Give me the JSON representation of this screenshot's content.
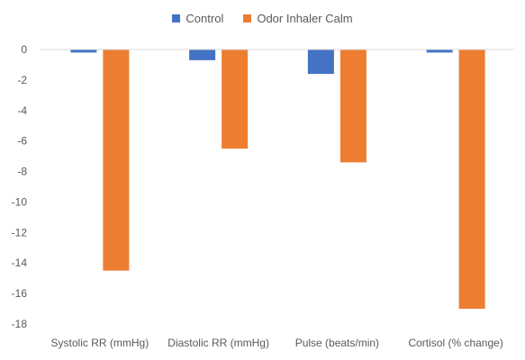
{
  "chart_data": {
    "type": "bar",
    "title": "",
    "xlabel": "",
    "ylabel": "",
    "categories": [
      "Systolic RR (mmHg)",
      "Diastolic RR (mmHg)",
      "Pulse (beats/min)",
      "Cortisol (% change)"
    ],
    "series": [
      {
        "name": "Control",
        "color": "#4472C4",
        "values": [
          -0.2,
          -0.7,
          -1.6,
          -0.2
        ]
      },
      {
        "name": "Odor Inhaler Calm",
        "color": "#ED7D31",
        "values": [
          -14.5,
          -6.5,
          -7.4,
          -17.0
        ]
      }
    ],
    "ylim": [
      -18,
      0
    ],
    "yticks": [
      "0",
      "-2",
      "-4",
      "-6",
      "-8",
      "-10",
      "-12",
      "-14",
      "-16",
      "-18"
    ],
    "grid": false,
    "legend_position": "top"
  }
}
